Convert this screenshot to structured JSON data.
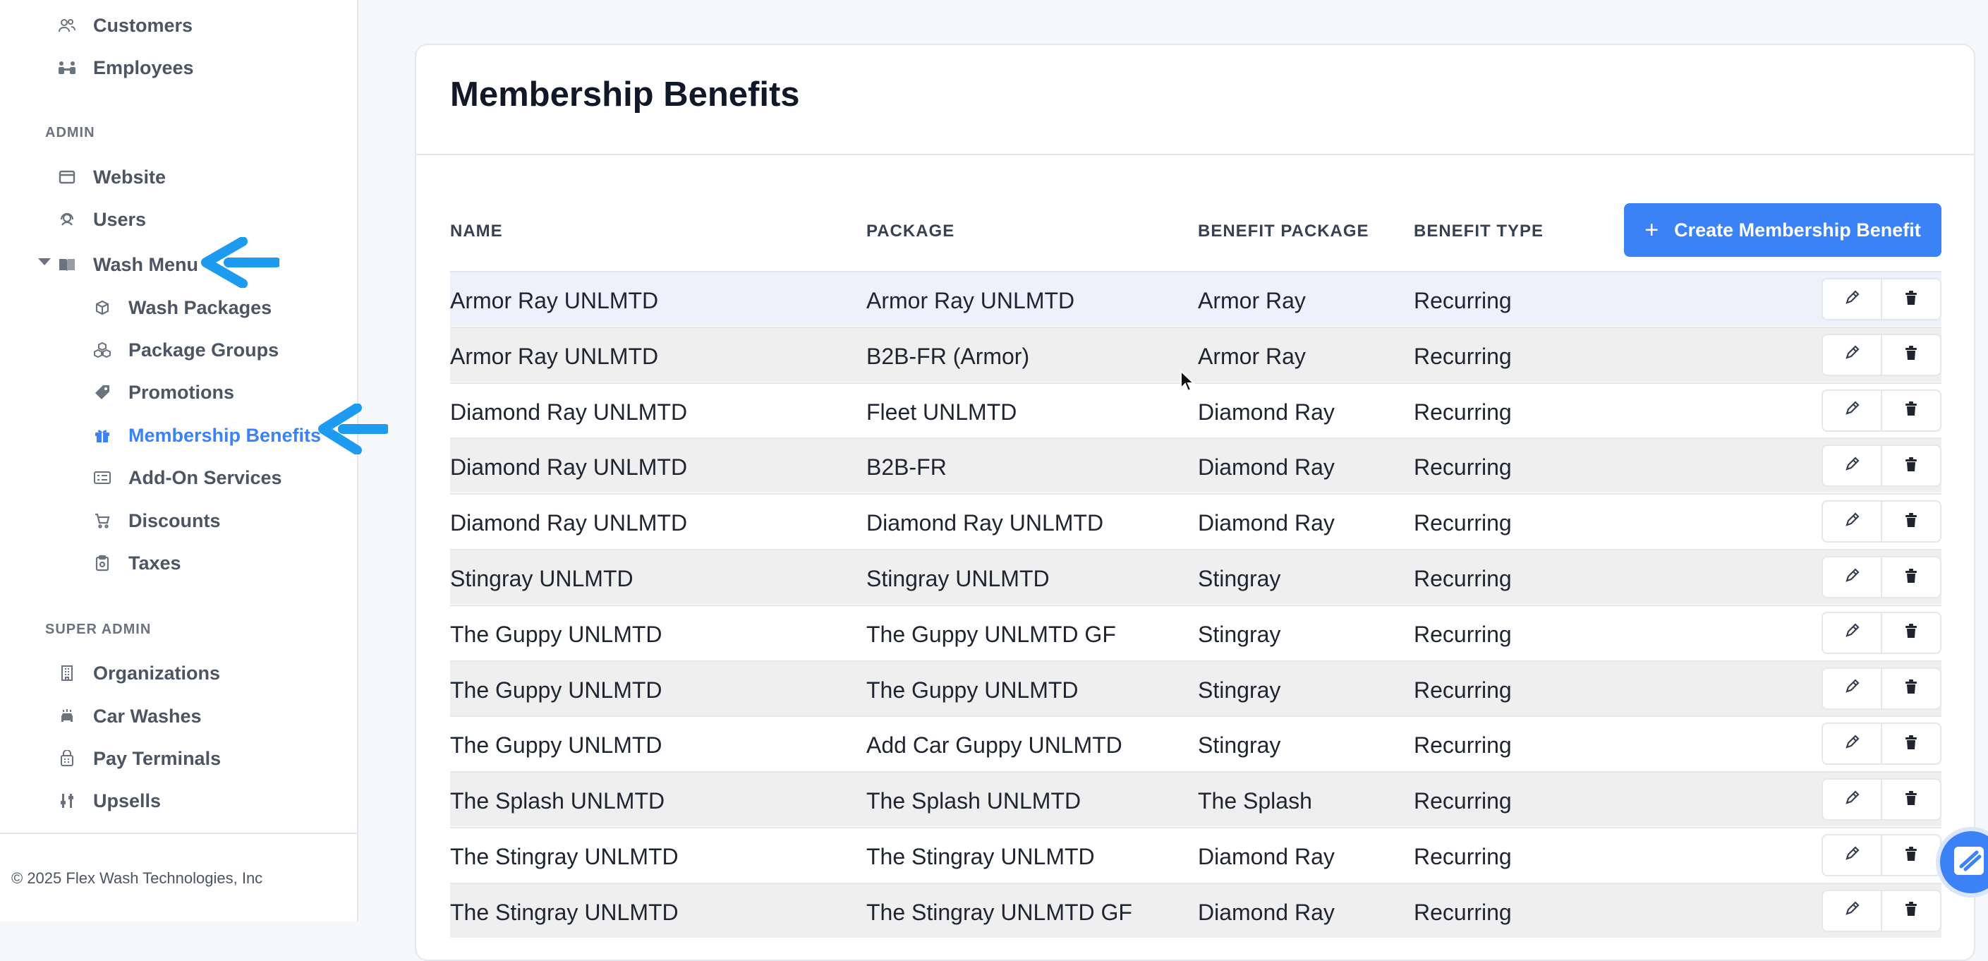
{
  "sidebar": {
    "top_items": [
      {
        "label": "Customers",
        "icon": "users-icon"
      },
      {
        "label": "Employees",
        "icon": "employees-icon"
      }
    ],
    "admin_label": "ADMIN",
    "admin_items": [
      {
        "label": "Website",
        "icon": "browser-icon"
      },
      {
        "label": "Users",
        "icon": "user-headset-icon"
      },
      {
        "label": "Wash Menu",
        "icon": "book-icon"
      }
    ],
    "wash_menu_items": [
      {
        "label": "Wash Packages",
        "icon": "box-icon"
      },
      {
        "label": "Package Groups",
        "icon": "boxes-icon"
      },
      {
        "label": "Promotions",
        "icon": "tag-icon"
      },
      {
        "label": "Membership Benefits",
        "icon": "gift-icon"
      },
      {
        "label": "Add-On Services",
        "icon": "list-card-icon"
      },
      {
        "label": "Discounts",
        "icon": "cart-icon"
      },
      {
        "label": "Taxes",
        "icon": "clipboard-icon"
      }
    ],
    "super_admin_label": "SUPER ADMIN",
    "super_admin_items": [
      {
        "label": "Organizations",
        "icon": "building-icon"
      },
      {
        "label": "Car Washes",
        "icon": "car-wash-icon"
      },
      {
        "label": "Pay Terminals",
        "icon": "terminal-icon"
      },
      {
        "label": "Upsells",
        "icon": "sliders-icon"
      }
    ],
    "footer": "© 2025 Flex Wash Technologies, Inc"
  },
  "main": {
    "title": "Membership Benefits",
    "create_button": "Create Membership Benefit",
    "columns": [
      "NAME",
      "PACKAGE",
      "BENEFIT PACKAGE",
      "BENEFIT TYPE"
    ],
    "rows": [
      [
        "Armor Ray UNLMTD",
        "Armor Ray UNLMTD",
        "Armor Ray",
        "Recurring"
      ],
      [
        "Armor Ray UNLMTD",
        "B2B-FR (Armor)",
        "Armor Ray",
        "Recurring"
      ],
      [
        "Diamond Ray UNLMTD",
        "Fleet UNLMTD",
        "Diamond Ray",
        "Recurring"
      ],
      [
        "Diamond Ray UNLMTD",
        "B2B-FR",
        "Diamond Ray",
        "Recurring"
      ],
      [
        "Diamond Ray UNLMTD",
        "Diamond Ray UNLMTD",
        "Diamond Ray",
        "Recurring"
      ],
      [
        "Stingray UNLMTD",
        "Stingray UNLMTD",
        "Stingray",
        "Recurring"
      ],
      [
        "The Guppy UNLMTD",
        "The Guppy UNLMTD GF",
        "Stingray",
        "Recurring"
      ],
      [
        "The Guppy UNLMTD",
        "The Guppy UNLMTD",
        "Stingray",
        "Recurring"
      ],
      [
        "The Guppy UNLMTD",
        "Add Car Guppy UNLMTD",
        "Stingray",
        "Recurring"
      ],
      [
        "The Splash UNLMTD",
        "The Splash UNLMTD",
        "The Splash",
        "Recurring"
      ],
      [
        "The Stingray UNLMTD",
        "The Stingray UNLMTD",
        "Diamond Ray",
        "Recurring"
      ],
      [
        "The Stingray UNLMTD",
        "The Stingray UNLMTD GF",
        "Diamond Ray",
        "Recurring"
      ]
    ]
  },
  "colors": {
    "accent": "#3b82f6",
    "annotation_arrow": "#1d9bf0"
  }
}
